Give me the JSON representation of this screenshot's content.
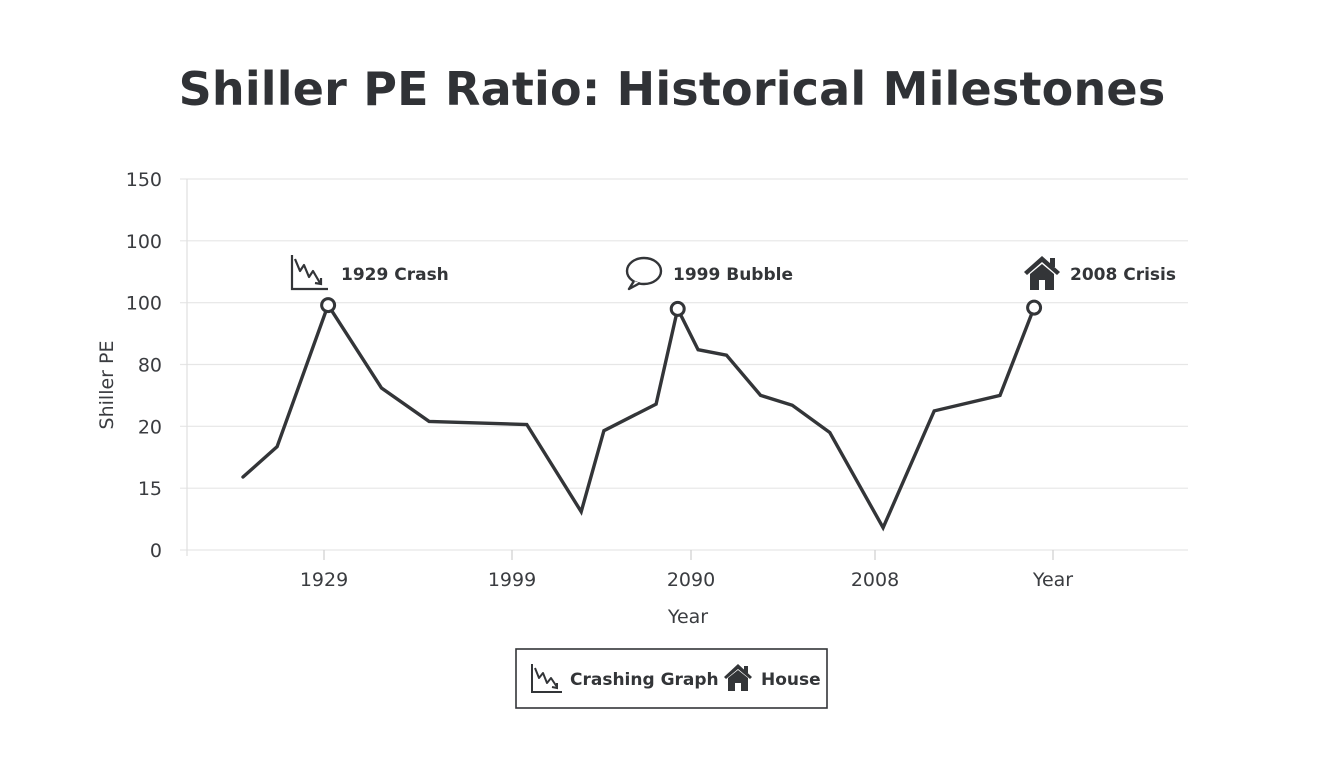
{
  "chart_data": {
    "type": "line",
    "title": "Shiller PE Ratio: Historical Milestones",
    "xlabel": "Year",
    "ylabel": "Shiller PE",
    "y_tick_labels": [
      "0",
      "15",
      "20",
      "80",
      "100",
      "100",
      "150"
    ],
    "x_tick_labels": [
      "1929",
      "1999",
      "2090",
      "2008",
      "Year"
    ],
    "grid": true,
    "series": [
      {
        "values": [
          {
            "x": 0.0,
            "y": 1.18
          },
          {
            "x": 0.3,
            "y": 1.67
          },
          {
            "x": 0.75,
            "y": 3.96
          },
          {
            "x": 1.22,
            "y": 2.62
          },
          {
            "x": 1.64,
            "y": 2.08
          },
          {
            "x": 2.5,
            "y": 2.03
          },
          {
            "x": 2.98,
            "y": 0.62
          },
          {
            "x": 3.18,
            "y": 1.93
          },
          {
            "x": 3.64,
            "y": 2.36
          },
          {
            "x": 3.83,
            "y": 3.9
          },
          {
            "x": 4.01,
            "y": 3.24
          },
          {
            "x": 4.26,
            "y": 3.15
          },
          {
            "x": 4.56,
            "y": 2.5
          },
          {
            "x": 4.84,
            "y": 2.34
          },
          {
            "x": 5.17,
            "y": 1.9
          },
          {
            "x": 5.64,
            "y": 0.36
          },
          {
            "x": 6.09,
            "y": 2.25
          },
          {
            "x": 6.67,
            "y": 2.5
          },
          {
            "x": 6.97,
            "y": 3.92
          }
        ]
      }
    ],
    "highlight_points": [
      {
        "x": 0.75,
        "y": 3.96
      },
      {
        "x": 3.83,
        "y": 3.9
      },
      {
        "x": 6.97,
        "y": 3.92
      }
    ],
    "annotations": [
      {
        "text": "1929 Crash",
        "icon": "crashing-graph-icon"
      },
      {
        "text": "1999 Bubble",
        "icon": "speech-bubble-icon"
      },
      {
        "text": "2008 Crisis",
        "icon": "house-icon"
      }
    ],
    "legend": {
      "position": "bottom-center",
      "items": [
        {
          "label": "Crashing Graph",
          "icon": "crashing-graph-icon"
        },
        {
          "label": "House",
          "icon": "house-icon"
        }
      ]
    },
    "colors": {
      "line": "#333538",
      "grid": "#e6e6e6",
      "text": "#333538"
    }
  }
}
